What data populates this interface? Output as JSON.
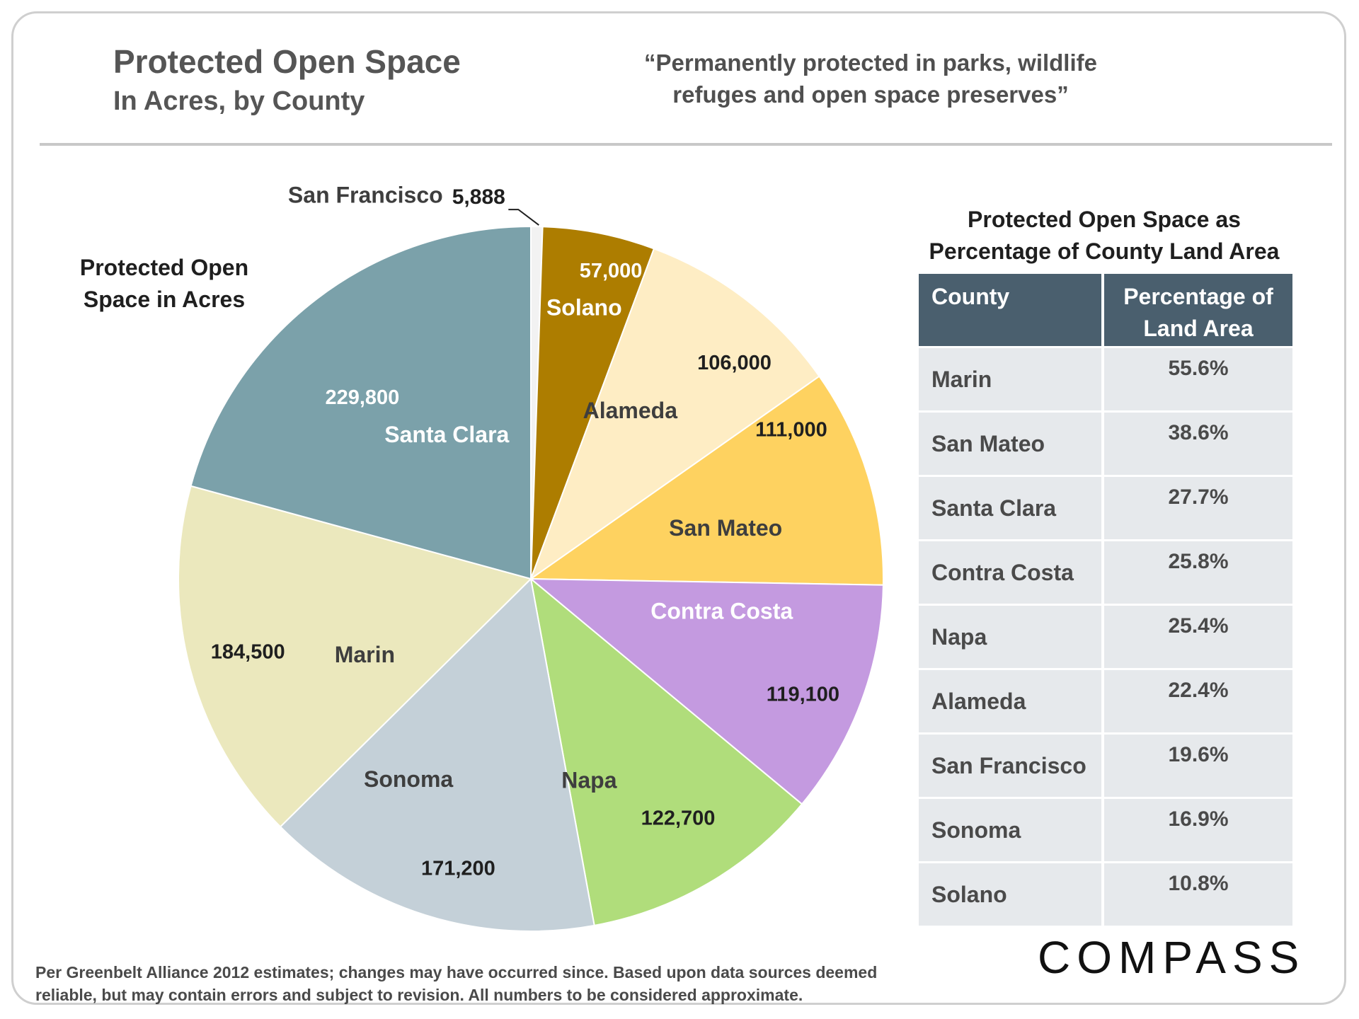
{
  "header": {
    "title": "Protected Open Space",
    "subtitle": "In Acres, by County",
    "quote_line1": "“Permanently protected in parks, wildlife",
    "quote_line2": "refuges and open space preserves”"
  },
  "pie_heading": {
    "line1": "Protected Open",
    "line2": "Space in Acres"
  },
  "chart_data": {
    "type": "pie",
    "title": "Protected Open Space in Acres",
    "unit": "acres",
    "slices": [
      {
        "label": "San Francisco",
        "value": 5888,
        "value_label": "5,888",
        "color": "#f2f2f2"
      },
      {
        "label": "Solano",
        "value": 57000,
        "value_label": "57,000",
        "color": "#ad7d00"
      },
      {
        "label": "Alameda",
        "value": 106000,
        "value_label": "106,000",
        "color": "#feedc4"
      },
      {
        "label": "San Mateo",
        "value": 111000,
        "value_label": "111,000",
        "color": "#fed260"
      },
      {
        "label": "Contra Costa",
        "value": 119100,
        "value_label": "119,100",
        "color": "#c49ae0"
      },
      {
        "label": "Napa",
        "value": 122700,
        "value_label": "122,700",
        "color": "#b0dd7b"
      },
      {
        "label": "Sonoma",
        "value": 171200,
        "value_label": "171,200",
        "color": "#c4d0d8"
      },
      {
        "label": "Marin",
        "value": 184500,
        "value_label": "184,500",
        "color": "#ebe8bd"
      },
      {
        "label": "Santa Clara",
        "value": 229800,
        "value_label": "229,800",
        "color": "#7ba1aa"
      }
    ]
  },
  "table": {
    "heading_line1": "Protected Open Space as",
    "heading_line2": "Percentage of County Land Area",
    "col_county": "County",
    "col_pct_line1": "Percentage of",
    "col_pct_line2": "Land Area",
    "rows": [
      {
        "county": "Marin",
        "pct": "55.6%"
      },
      {
        "county": "San Mateo",
        "pct": "38.6%"
      },
      {
        "county": "Santa Clara",
        "pct": "27.7%"
      },
      {
        "county": "Contra Costa",
        "pct": "25.8%"
      },
      {
        "county": "Napa",
        "pct": "25.4%"
      },
      {
        "county": "Alameda",
        "pct": "22.4%"
      },
      {
        "county": "San Francisco",
        "pct": "19.6%"
      },
      {
        "county": "Sonoma",
        "pct": "16.9%"
      },
      {
        "county": "Solano",
        "pct": "10.8%"
      }
    ]
  },
  "footnote": {
    "line1": "Per Greenbelt Alliance 2012 estimates; changes may have occurred since. Based upon data sources deemed",
    "line2": "reliable, but may contain errors and  subject to revision. All numbers to be considered approximate."
  },
  "logo": "COMPASS"
}
